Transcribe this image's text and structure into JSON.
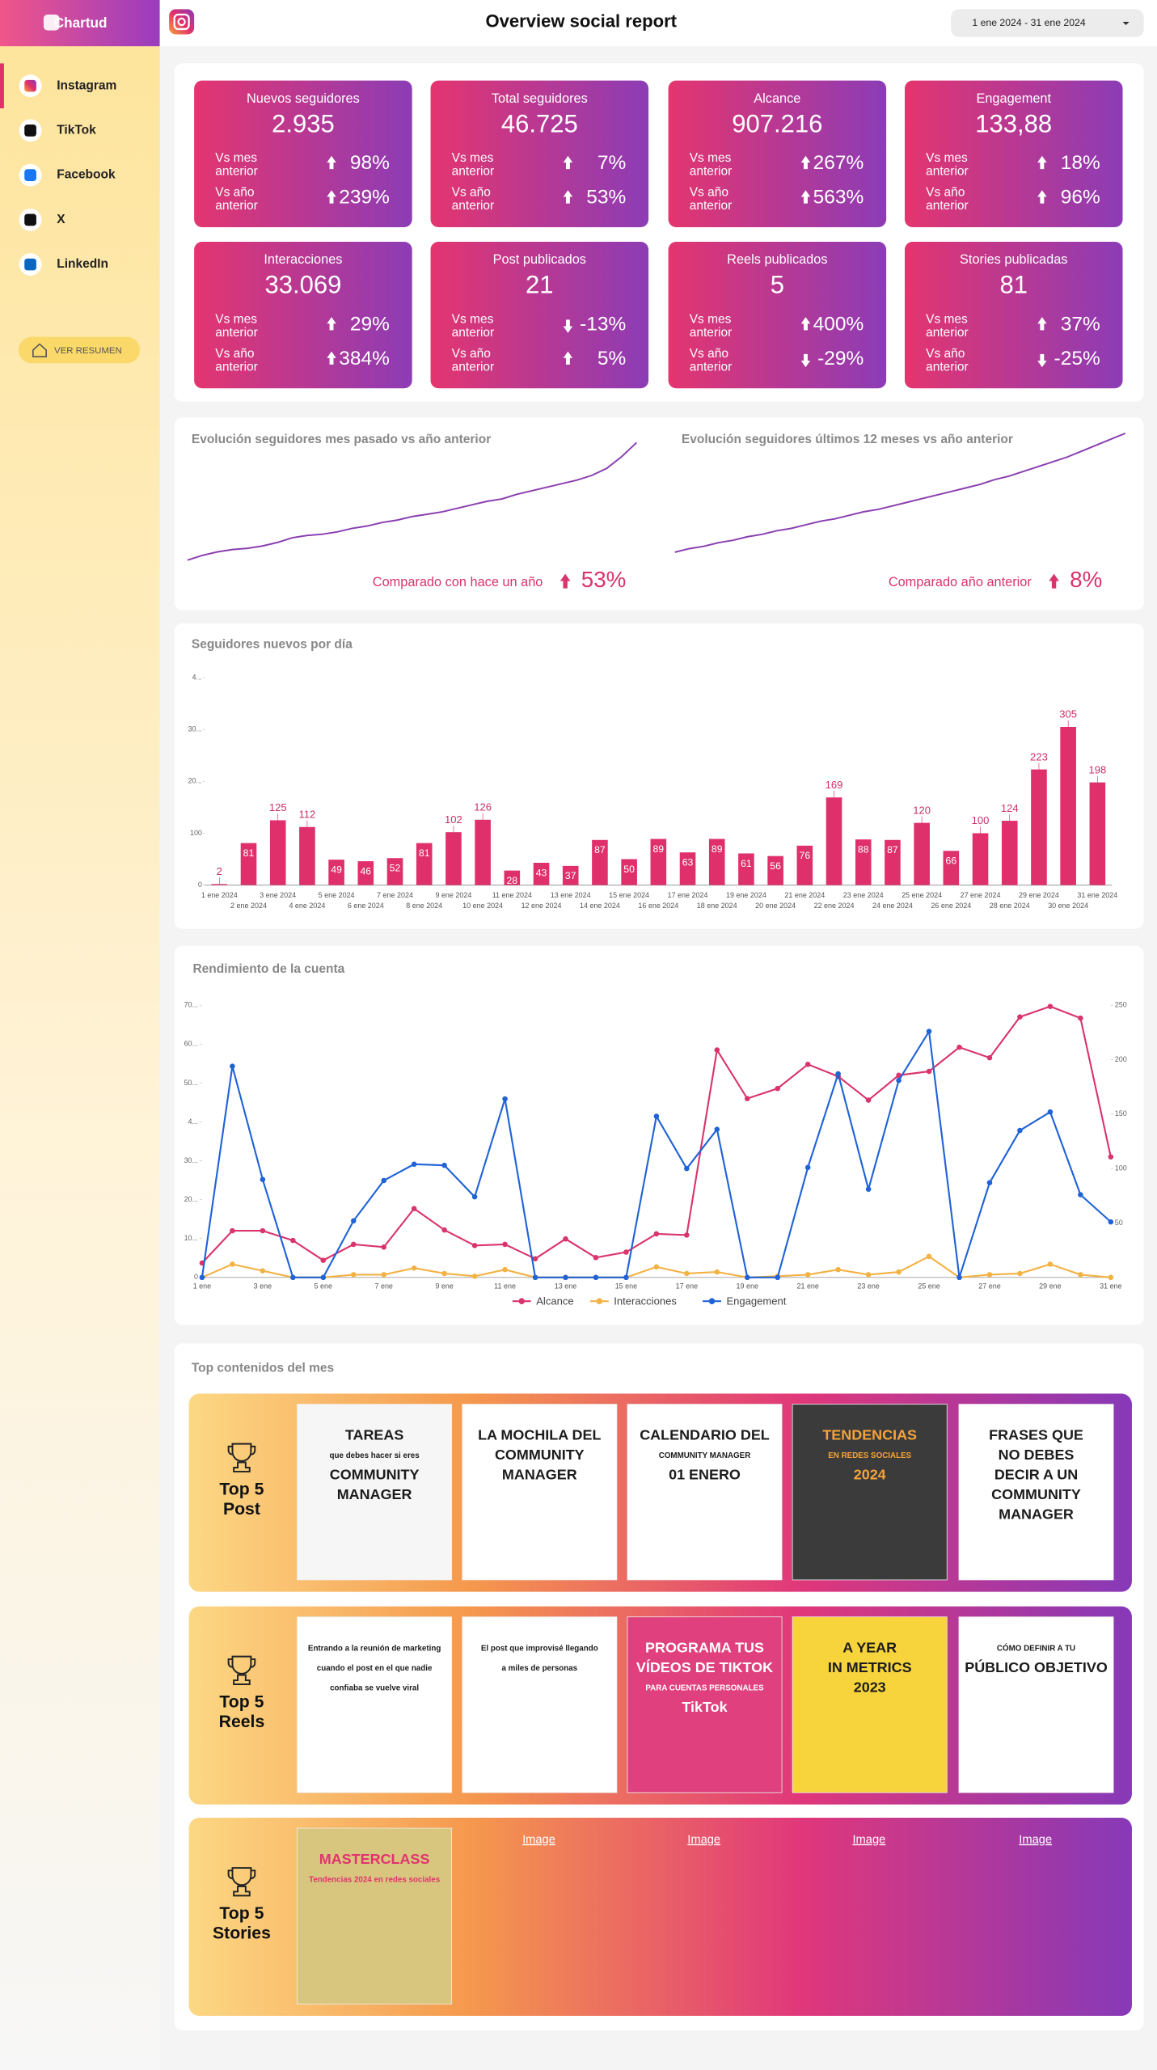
{
  "sidebar": {
    "brand": "Chartud",
    "nav": [
      "Instagram",
      "TikTok",
      "Facebook",
      "X",
      "LinkedIn"
    ],
    "button": "VER RESUMEN"
  },
  "header": {
    "title": "Overview social report",
    "date_range": "1 ene 2024 - 31 ene 2024"
  },
  "kpis": [
    {
      "label": "Nuevos seguidores",
      "value": "2.935",
      "rows": [
        {
          "label": [
            "Vs mes",
            "anterior"
          ],
          "value": "98%",
          "trend": "up"
        },
        {
          "label": [
            "Vs año",
            "anterior"
          ],
          "value": "239%",
          "trend": "up"
        }
      ]
    },
    {
      "label": "Total seguidores",
      "value": "46.725",
      "rows": [
        {
          "label": [
            "Vs mes",
            "anterior"
          ],
          "value": "7%",
          "trend": "up"
        },
        {
          "label": [
            "Vs año",
            "anterior"
          ],
          "value": "53%",
          "trend": "up"
        }
      ]
    },
    {
      "label": "Alcance",
      "value": "907.216",
      "rows": [
        {
          "label": [
            "Vs mes",
            "anterior"
          ],
          "value": "267%",
          "trend": "up"
        },
        {
          "label": [
            "Vs año",
            "anterior"
          ],
          "value": "563%",
          "trend": "up"
        }
      ]
    },
    {
      "label": "Engagement",
      "value": "133,88",
      "rows": [
        {
          "label": [
            "Vs mes",
            "anterior"
          ],
          "value": "18%",
          "trend": "up"
        },
        {
          "label": [
            "Vs año",
            "anterior"
          ],
          "value": "96%",
          "trend": "up"
        }
      ]
    },
    {
      "label": "Interacciones",
      "value": "33.069",
      "rows": [
        {
          "label": [
            "Vs mes",
            "anterior"
          ],
          "value": "29%",
          "trend": "up"
        },
        {
          "label": [
            "Vs año",
            "anterior"
          ],
          "value": "384%",
          "trend": "up"
        }
      ]
    },
    {
      "label": "Post publicados",
      "value": "21",
      "rows": [
        {
          "label": [
            "Vs mes",
            "anterior"
          ],
          "value": "-13%",
          "trend": "down"
        },
        {
          "label": [
            "Vs año",
            "anterior"
          ],
          "value": "5%",
          "trend": "up"
        }
      ]
    },
    {
      "label": "Reels publicados",
      "value": "5",
      "rows": [
        {
          "label": [
            "Vs mes",
            "anterior"
          ],
          "value": "400%",
          "trend": "up"
        },
        {
          "label": [
            "Vs año",
            "anterior"
          ],
          "value": "-29%",
          "trend": "down"
        }
      ]
    },
    {
      "label": "Stories publicadas",
      "value": "81",
      "rows": [
        {
          "label": [
            "Vs mes",
            "anterior"
          ],
          "value": "37%",
          "trend": "up"
        },
        {
          "label": [
            "Vs año",
            "anterior"
          ],
          "value": "-25%",
          "trend": "down"
        }
      ]
    }
  ],
  "followers_trend": [
    {
      "type": "line",
      "title": "Evolución seguidores mes pasado vs año anterior",
      "caption": "Comparado con hace un año",
      "value": "53%",
      "trend": "up",
      "color": "#8a3fb0",
      "ylim": [
        0,
        100
      ],
      "values": [
        0,
        4,
        7,
        9,
        10,
        12,
        15,
        19,
        21,
        22,
        24,
        27,
        29,
        32,
        34,
        37,
        39,
        41,
        44,
        47,
        50,
        52,
        56,
        59,
        62,
        65,
        68,
        72,
        78,
        88,
        100
      ]
    },
    {
      "type": "line",
      "title": "Evolución seguidores últimos 12 meses vs año anterior",
      "caption": "Comparado año anterior",
      "value": "8%",
      "trend": "up",
      "color": "#8a3fb0",
      "ylim": [
        0,
        100
      ],
      "values": [
        0,
        3,
        5,
        8,
        10,
        13,
        15,
        18,
        20,
        23,
        26,
        28,
        31,
        34,
        36,
        39,
        42,
        45,
        48,
        51,
        54,
        57,
        61,
        64,
        68,
        72,
        76,
        80,
        85,
        90,
        95,
        100
      ]
    }
  ],
  "daily_followers": {
    "type": "bar",
    "title": "Seguidores nuevos por día",
    "color": "#e0306c",
    "categories": [
      "1 ene 2024",
      "2 ene 2024",
      "3 ene 2024",
      "4 ene 2024",
      "5 ene 2024",
      "6 ene 2024",
      "7 ene 2024",
      "8 ene 2024",
      "9 ene 2024",
      "10 ene 2024",
      "11 ene 2024",
      "12 ene 2024",
      "13 ene 2024",
      "14 ene 2024",
      "15 ene 2024",
      "16 ene 2024",
      "17 ene 2024",
      "18 ene 2024",
      "19 ene 2024",
      "20 ene 2024",
      "21 ene 2024",
      "22 ene 2024",
      "23 ene 2024",
      "24 ene 2024",
      "25 ene 2024",
      "26 ene 2024",
      "27 ene 2024",
      "28 ene 2024",
      "29 ene 2024",
      "30 ene 2024",
      "31 ene 2024"
    ],
    "values": [
      2,
      81,
      125,
      112,
      49,
      46,
      52,
      81,
      102,
      126,
      28,
      43,
      37,
      87,
      50,
      89,
      63,
      89,
      61,
      56,
      76,
      169,
      88,
      87,
      120,
      66,
      100,
      124,
      223,
      305,
      198
    ],
    "ylim": [
      0,
      400
    ],
    "yticks": [
      0,
      100,
      {
        "value": 200,
        "label": "20..."
      },
      {
        "value": 300,
        "label": "30..."
      },
      {
        "value": 400,
        "label": "4..."
      }
    ],
    "grid": false
  },
  "account_performance": {
    "type": "line",
    "title": "Rendimiento de la cuenta",
    "categories": [
      "1 ene",
      null,
      "3 ene",
      null,
      "5 ene",
      null,
      "7 ene",
      null,
      "9 ene",
      null,
      "11 ene",
      null,
      "13 ene",
      null,
      "15 ene",
      null,
      "17 ene",
      null,
      "19 ene",
      null,
      "21 ene",
      null,
      "23 ene",
      null,
      "25 ene",
      null,
      "27 ene",
      null,
      "29 ene",
      null,
      "31 ene"
    ],
    "series": [
      {
        "name": "Alcance",
        "color": "#d9346c",
        "axis": "y",
        "values": [
          3700,
          12000,
          12000,
          9500,
          4400,
          8500,
          7800,
          17700,
          12200,
          8200,
          8500,
          4800,
          9900,
          5100,
          6500,
          11200,
          10900,
          58500,
          46000,
          48600,
          54800,
          51700,
          45600,
          52000,
          53000,
          59200,
          56500,
          67000,
          69700,
          66700,
          31000
        ]
      },
      {
        "name": "Interacciones",
        "color": "#f3b244",
        "axis": "y",
        "values": [
          0,
          3400,
          1700,
          0,
          0,
          700,
          700,
          2400,
          1000,
          300,
          2000,
          0,
          0,
          0,
          0,
          2700,
          1000,
          1400,
          0,
          300,
          700,
          2000,
          700,
          1400,
          5400,
          0,
          700,
          1000,
          3400,
          700,
          0
        ]
      },
      {
        "name": "Engagement",
        "color": "#1f63d6",
        "axis": "y2",
        "values": [
          0,
          194,
          90,
          0,
          0,
          52,
          89,
          104,
          103,
          74,
          164,
          0,
          0,
          0,
          0,
          148,
          100,
          136,
          0,
          0,
          101,
          187,
          81,
          181,
          226,
          0,
          87,
          135,
          152,
          76,
          51
        ]
      }
    ],
    "ylim": [
      0,
      70000
    ],
    "yticks": [
      0,
      {
        "value": 10000,
        "label": "10..."
      },
      {
        "value": 20000,
        "label": "20..."
      },
      {
        "value": 30000,
        "label": "30..."
      },
      {
        "value": 40000,
        "label": "4..."
      },
      {
        "value": 50000,
        "label": "50..."
      },
      {
        "value": 60000,
        "label": "60..."
      },
      {
        "value": 70000,
        "label": "70..."
      }
    ],
    "y2lim": [
      0,
      250
    ],
    "y2ticks": [
      50,
      100,
      150,
      200,
      250
    ],
    "legend": "bottom",
    "grid": false
  },
  "top_content": {
    "title": "Top contenidos del mes",
    "rows": [
      {
        "label": [
          "Top 5",
          "Post"
        ],
        "items": [
          {
            "bg": "#f6f6f6",
            "color": "#1c1c1c",
            "lines": [
              "TAREAS",
              "que debes hacer si eres",
              "COMMUNITY",
              "MANAGER"
            ]
          },
          {
            "bg": "#ffffff",
            "color": "#1c1c1c",
            "lines": [
              "LA MOCHILA DEL",
              "COMMUNITY",
              "MANAGER"
            ]
          },
          {
            "bg": "#ffffff",
            "color": "#1c1c1c",
            "lines": [
              "CALENDARIO DEL",
              "COMMUNITY MANAGER",
              "01 ENERO"
            ]
          },
          {
            "bg": "#3b3b3b",
            "color": "#f5a43a",
            "lines": [
              "TENDENCIAS",
              "EN REDES SOCIALES",
              "2024"
            ]
          },
          {
            "bg": "#ffffff",
            "color": "#1c1c1c",
            "lines": [
              "FRASES QUE",
              "NO DEBES",
              "DECIR A UN",
              "COMMUNITY",
              "MANAGER"
            ]
          }
        ]
      },
      {
        "label": [
          "Top 5",
          "Reels"
        ],
        "items": [
          {
            "bg": "#ffffff",
            "color": "#1c1c1c",
            "lines": [
              "Entrando a la reunión de marketing",
              "cuando el post en el que nadie",
              "confiaba se vuelve viral"
            ]
          },
          {
            "bg": "#ffffff",
            "color": "#1c1c1c",
            "lines": [
              "El post que improvisé llegando",
              "a miles de personas"
            ]
          },
          {
            "bg": "#e0407e",
            "color": "#ffffff",
            "lines": [
              "PROGRAMA TUS",
              "VÍDEOS DE TIKTOK",
              "PARA CUENTAS PERSONALES",
              "TikTok"
            ]
          },
          {
            "bg": "#f7d43c",
            "color": "#1c1c1c",
            "lines": [
              "A YEAR",
              "IN METRICS",
              "2023"
            ]
          },
          {
            "bg": "#ffffff",
            "color": "#1c1c1c",
            "lines": [
              "CÓMO DEFINIR A TU",
              "PÚBLICO OBJETIVO"
            ]
          }
        ]
      },
      {
        "label": [
          "Top 5",
          "Stories"
        ],
        "items": [
          {
            "bg": "#d8c67e",
            "color": "#e0336f",
            "lines": [
              "MASTERCLASS",
              "Tendencias 2024 en redes sociales"
            ]
          },
          {
            "alt": "Image"
          },
          {
            "alt": "Image"
          },
          {
            "alt": "Image"
          },
          {
            "alt": "Image"
          }
        ]
      }
    ]
  }
}
